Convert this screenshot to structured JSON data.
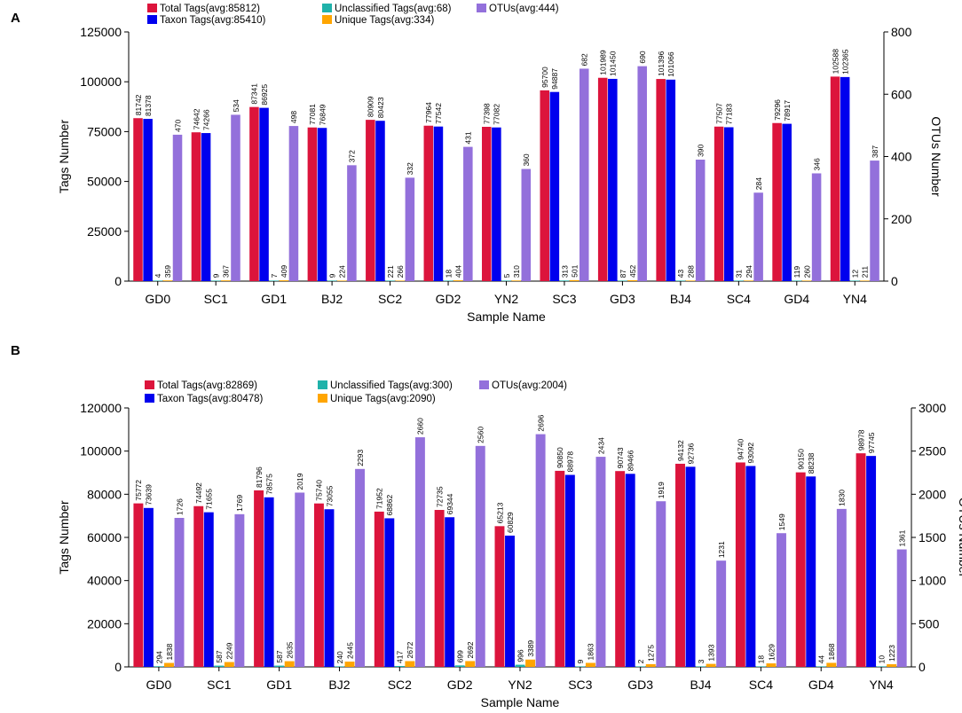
{
  "colors": {
    "total": "#dc143c",
    "taxon": "#0000ee",
    "unclassified": "#20b2aa",
    "unique": "#ffa500",
    "otus": "#9370db"
  },
  "chart_data": [
    {
      "panel": "A",
      "type": "bar",
      "xlabel": "Sample Name",
      "ylabel": "Tags Number",
      "y2label": "OTUs Number",
      "ylim": [
        0,
        125000
      ],
      "y2lim": [
        0,
        800
      ],
      "yticks": [
        "0",
        "25000",
        "50000",
        "75000",
        "100000",
        "125000"
      ],
      "y2ticks": [
        "0",
        "200",
        "400",
        "600",
        "800"
      ],
      "categories": [
        "GD0",
        "SC1",
        "GD1",
        "BJ2",
        "SC2",
        "GD2",
        "YN2",
        "SC3",
        "GD3",
        "BJ4",
        "SC4",
        "GD4",
        "YN4"
      ],
      "legend": {
        "total": "Total Tags(avg:85812)",
        "taxon": "Taxon Tags(avg:85410)",
        "unclassified": "Unclassified Tags(avg:68)",
        "unique": "Unique Tags(avg:334)",
        "otus": "OTUs(avg:444)"
      },
      "series": [
        {
          "key": "total",
          "name": "Total Tags",
          "axis": "left",
          "values": [
            81742,
            74642,
            87341,
            77081,
            80909,
            77964,
            77398,
            95700,
            101989,
            101396,
            77507,
            79296,
            102588
          ]
        },
        {
          "key": "taxon",
          "name": "Taxon Tags",
          "axis": "left",
          "values": [
            81378,
            74266,
            86925,
            76849,
            80423,
            77542,
            77082,
            94887,
            101450,
            101066,
            77183,
            78917,
            102365
          ]
        },
        {
          "key": "unclassified",
          "name": "Unclassified Tags",
          "axis": "left",
          "values": [
            4,
            9,
            7,
            9,
            221,
            18,
            5,
            313,
            87,
            43,
            31,
            119,
            12
          ]
        },
        {
          "key": "unique",
          "name": "Unique Tags",
          "axis": "left",
          "values": [
            359,
            367,
            409,
            224,
            266,
            404,
            310,
            501,
            452,
            288,
            294,
            260,
            211
          ]
        },
        {
          "key": "otus",
          "name": "OTUs",
          "axis": "right",
          "values": [
            470,
            534,
            498,
            372,
            332,
            431,
            360,
            682,
            690,
            390,
            284,
            346,
            387
          ]
        }
      ]
    },
    {
      "panel": "B",
      "type": "bar",
      "xlabel": "Sample Name",
      "ylabel": "Tags Number",
      "y2label": "OTUs Number",
      "ylim": [
        0,
        120000
      ],
      "y2lim": [
        0,
        3000
      ],
      "yticks": [
        "0",
        "20000",
        "40000",
        "60000",
        "80000",
        "100000",
        "120000"
      ],
      "y2ticks": [
        "0",
        "500",
        "1000",
        "1500",
        "2000",
        "2500",
        "3000"
      ],
      "categories": [
        "GD0",
        "SC1",
        "GD1",
        "BJ2",
        "SC2",
        "GD2",
        "YN2",
        "SC3",
        "GD3",
        "BJ4",
        "SC4",
        "GD4",
        "YN4"
      ],
      "legend": {
        "total": "Total Tags(avg:82869)",
        "taxon": "Taxon Tags(avg:80478)",
        "unclassified": "Unclassified Tags(avg:300)",
        "unique": "Unique Tags(avg:2090)",
        "otus": "OTUs(avg:2004)"
      },
      "series": [
        {
          "key": "total",
          "name": "Total Tags",
          "axis": "left",
          "values": [
            75772,
            74492,
            81796,
            75740,
            71952,
            72735,
            65213,
            90850,
            90743,
            94132,
            94740,
            90150,
            98978
          ]
        },
        {
          "key": "taxon",
          "name": "Taxon Tags",
          "axis": "left",
          "values": [
            73639,
            71655,
            78575,
            73055,
            68862,
            69344,
            60829,
            88978,
            89466,
            92736,
            93092,
            88238,
            97745
          ]
        },
        {
          "key": "unclassified",
          "name": "Unclassified Tags",
          "axis": "left",
          "values": [
            294,
            587,
            587,
            240,
            417,
            699,
            996,
            9,
            2,
            3,
            18,
            44,
            10
          ]
        },
        {
          "key": "unique",
          "name": "Unique Tags",
          "axis": "left",
          "values": [
            1838,
            2249,
            2635,
            2445,
            2672,
            2692,
            3389,
            1863,
            1275,
            1393,
            1629,
            1868,
            1223
          ]
        },
        {
          "key": "otus",
          "name": "OTUs",
          "axis": "right",
          "values": [
            1726,
            1769,
            2019,
            2293,
            2660,
            2560,
            2696,
            2434,
            1919,
            1231,
            1549,
            1830,
            1361
          ]
        }
      ]
    }
  ]
}
